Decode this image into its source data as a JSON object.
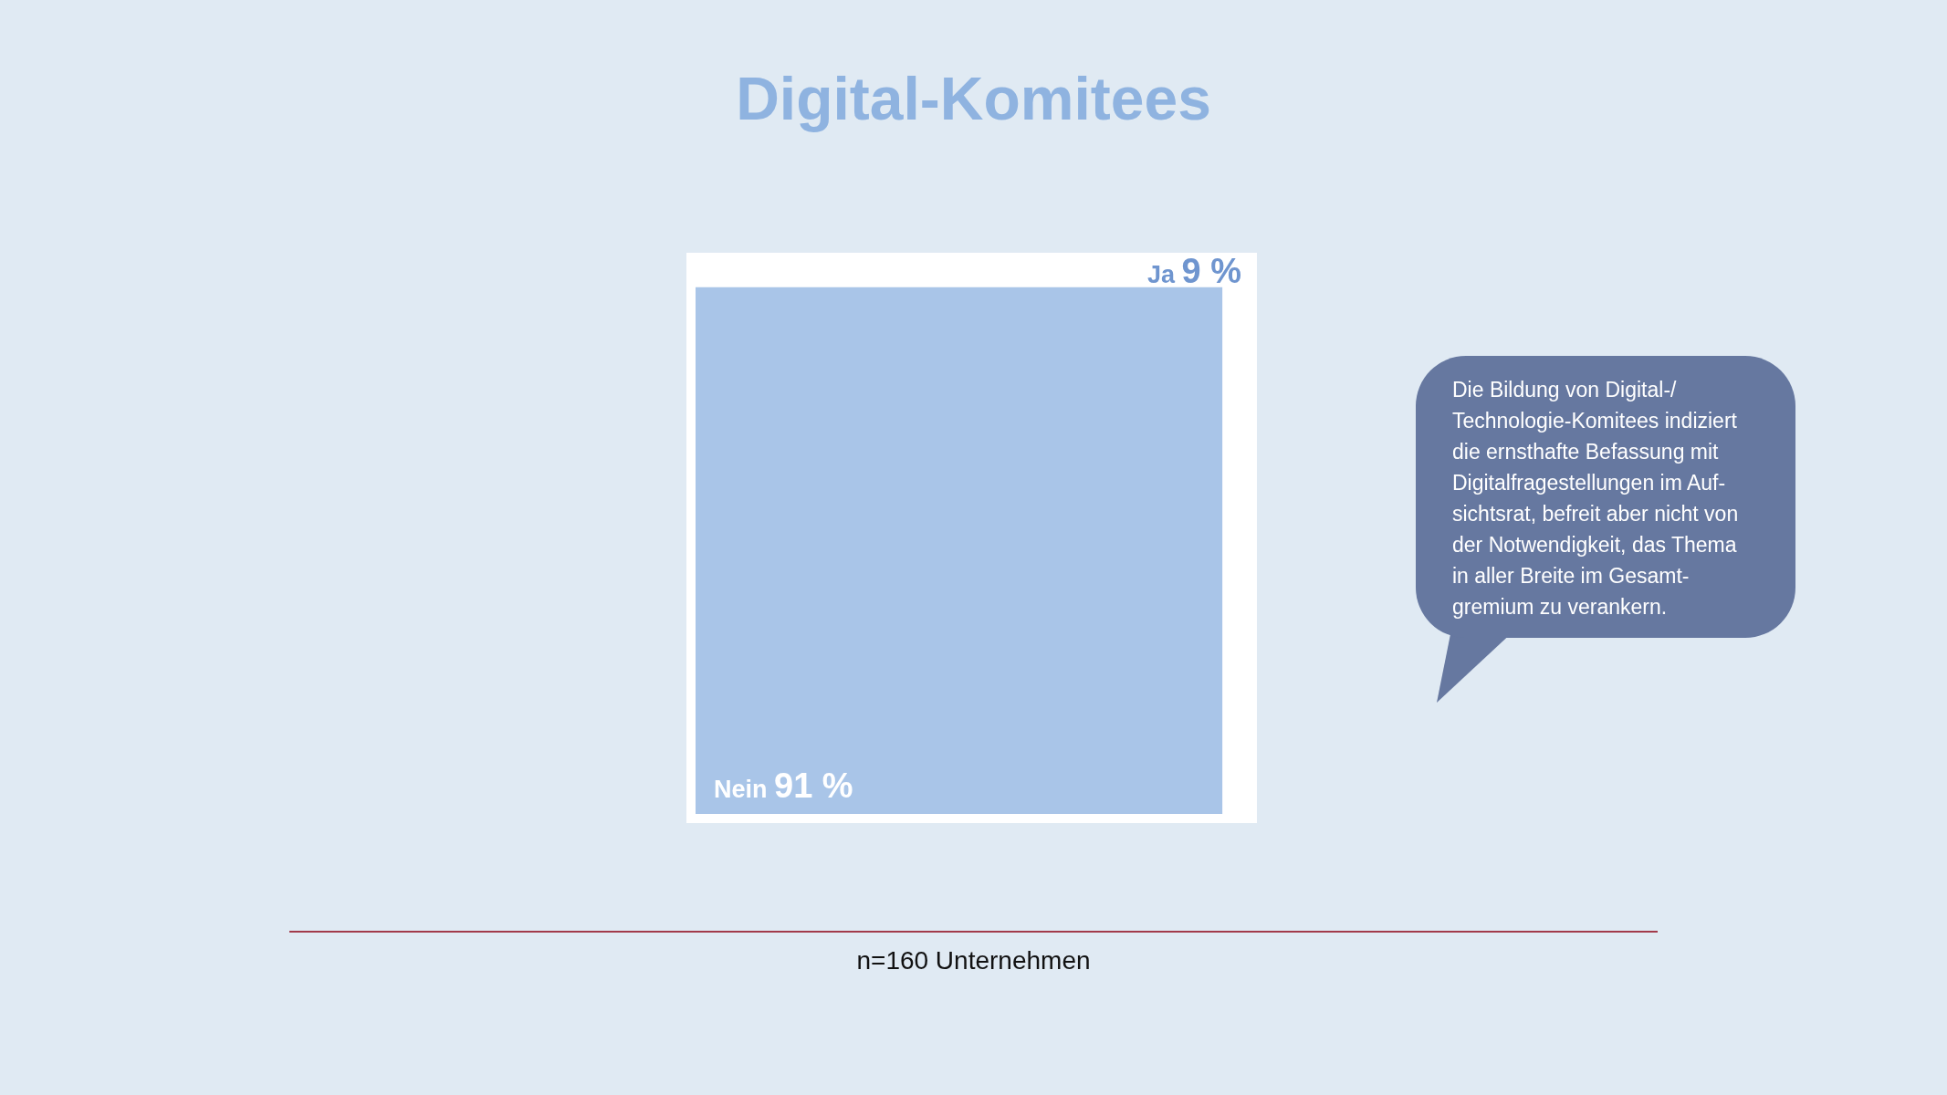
{
  "chart_data": {
    "type": "other",
    "title": "Digital-Komitees",
    "categories": [
      "Nein",
      "Ja"
    ],
    "values": [
      91,
      9
    ],
    "colors": [
      "#a9c5e8",
      "#ffffff"
    ],
    "value_labels": [
      "91 %",
      "9 %"
    ],
    "annotations": [
      "Die Bildung von Digital-/\nTechnologie-Komitees indiziert\ndie ernsthafte Befassung mit\nDigitalfragestellungen im Auf-\nsichtsrat, befreit aber nicht von\nder Notwendigkeit, das Thema\nin aller Breite im Gesamt-\ngremium zu verankern.",
      "n=160 Unternehmen"
    ]
  }
}
